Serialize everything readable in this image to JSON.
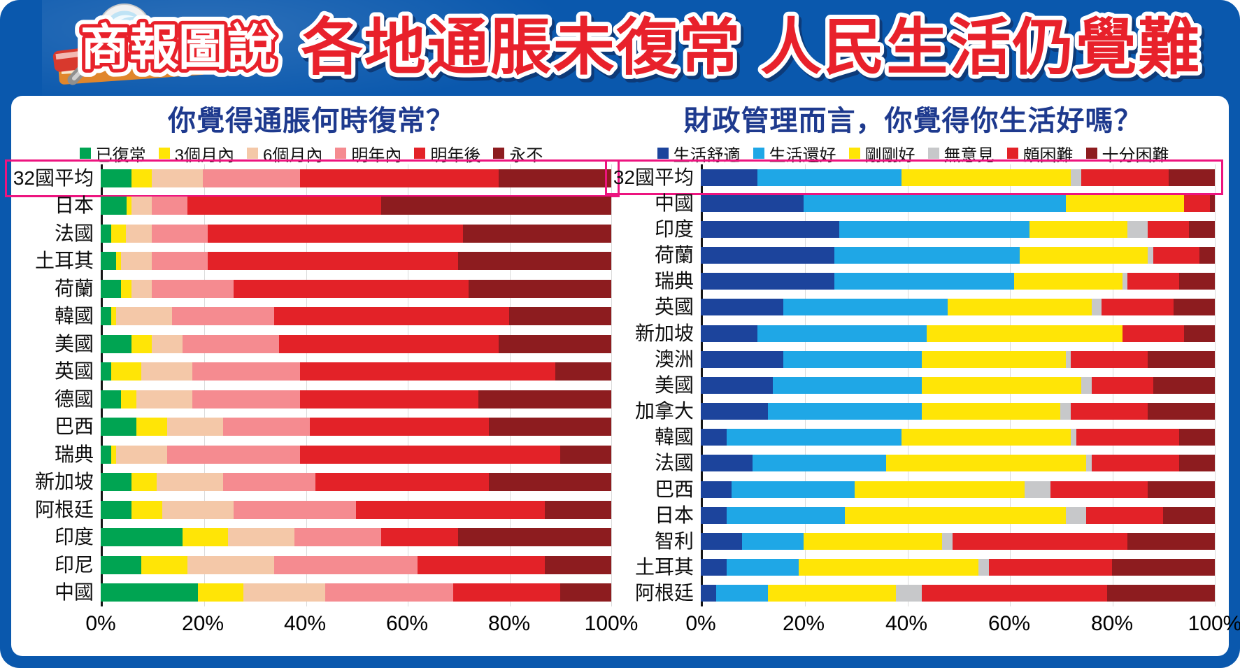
{
  "header": {
    "badge_label": "商報圖說",
    "title": "各地通脹未復常  人民生活仍覺難"
  },
  "colors": {
    "background_blue": "#0a58ad",
    "headline_red": "#e8212b",
    "headline_outline": "#ffffff",
    "headline_shadow": "#0d3a78",
    "chart_title_blue": "#1e3a8e",
    "highlight_magenta": "#ed147f",
    "gridline_gray": "#dadada",
    "axis_line_black": "#151515"
  },
  "chart_data": [
    {
      "type": "bar",
      "orientation": "horizontal",
      "stacked": true,
      "title": "你覺得通脹何時復常？",
      "legend_position": "top",
      "grid": true,
      "xlim": [
        0,
        100
      ],
      "x_ticks": [
        "0%",
        "20%",
        "40%",
        "60%",
        "80%",
        "100%"
      ],
      "highlight_row": "32國平均",
      "categories": [
        "32國平均",
        "日本",
        "法國",
        "土耳其",
        "荷蘭",
        "韓國",
        "美國",
        "英國",
        "德國",
        "巴西",
        "瑞典",
        "新加坡",
        "阿根廷",
        "印度",
        "印尼",
        "中國"
      ],
      "series": [
        {
          "name": "已復常",
          "color": "#00a452",
          "values": [
            6,
            5,
            2,
            3,
            4,
            2,
            6,
            2,
            4,
            7,
            2,
            6,
            6,
            16,
            8,
            19
          ]
        },
        {
          "name": "3個月內",
          "color": "#ffe506",
          "values": [
            4,
            1,
            3,
            1,
            2,
            1,
            4,
            6,
            3,
            6,
            1,
            5,
            6,
            9,
            9,
            9
          ]
        },
        {
          "name": "6個月內",
          "color": "#f4c8a8",
          "values": [
            10,
            4,
            5,
            6,
            4,
            11,
            6,
            10,
            11,
            11,
            10,
            13,
            14,
            13,
            17,
            16
          ]
        },
        {
          "name": "明年內",
          "color": "#f58b90",
          "values": [
            19,
            7,
            11,
            11,
            16,
            20,
            19,
            21,
            21,
            17,
            26,
            18,
            24,
            17,
            28,
            25
          ]
        },
        {
          "name": "明年後",
          "color": "#e32228",
          "values": [
            39,
            38,
            50,
            49,
            46,
            46,
            43,
            50,
            35,
            35,
            51,
            34,
            37,
            15,
            25,
            21
          ]
        },
        {
          "name": "永不",
          "color": "#8d1c1f",
          "values": [
            22,
            45,
            29,
            30,
            28,
            20,
            22,
            11,
            26,
            24,
            10,
            24,
            13,
            30,
            13,
            10
          ]
        }
      ]
    },
    {
      "type": "bar",
      "orientation": "horizontal",
      "stacked": true,
      "title": "財政管理而言，你覺得你生活好嗎？",
      "legend_position": "top",
      "grid": true,
      "xlim": [
        0,
        100
      ],
      "x_ticks": [
        "0%",
        "20%",
        "40%",
        "60%",
        "80%",
        "100%"
      ],
      "highlight_row": "32國平均",
      "categories": [
        "32國平均",
        "中國",
        "印度",
        "荷蘭",
        "瑞典",
        "英國",
        "新加坡",
        "澳洲",
        "美國",
        "加拿大",
        "韓國",
        "法國",
        "巴西",
        "日本",
        "智利",
        "土耳其",
        "阿根廷"
      ],
      "series": [
        {
          "name": "生活舒適",
          "color": "#1c449c",
          "values": [
            11,
            20,
            27,
            26,
            26,
            16,
            11,
            16,
            14,
            13,
            5,
            10,
            6,
            5,
            8,
            5,
            3
          ]
        },
        {
          "name": "生活還好",
          "color": "#1fa7e6",
          "values": [
            28,
            51,
            37,
            36,
            35,
            32,
            33,
            27,
            29,
            30,
            34,
            26,
            24,
            23,
            12,
            14,
            10
          ]
        },
        {
          "name": "剛剛好",
          "color": "#ffe506",
          "values": [
            33,
            23,
            19,
            25,
            21,
            28,
            38,
            28,
            31,
            27,
            33,
            39,
            33,
            43,
            27,
            35,
            25
          ]
        },
        {
          "name": "無意見",
          "color": "#c7c8ca",
          "values": [
            2,
            0,
            4,
            1,
            1,
            2,
            0,
            1,
            2,
            2,
            1,
            1,
            5,
            4,
            2,
            2,
            5
          ]
        },
        {
          "name": "頗困難",
          "color": "#e32228",
          "values": [
            17,
            5,
            8,
            9,
            10,
            14,
            12,
            15,
            12,
            15,
            20,
            17,
            19,
            15,
            34,
            24,
            36
          ]
        },
        {
          "name": "十分困難",
          "color": "#8d1c1f",
          "values": [
            9,
            1,
            5,
            3,
            7,
            8,
            6,
            13,
            12,
            13,
            7,
            7,
            13,
            10,
            17,
            20,
            21
          ]
        }
      ]
    }
  ]
}
